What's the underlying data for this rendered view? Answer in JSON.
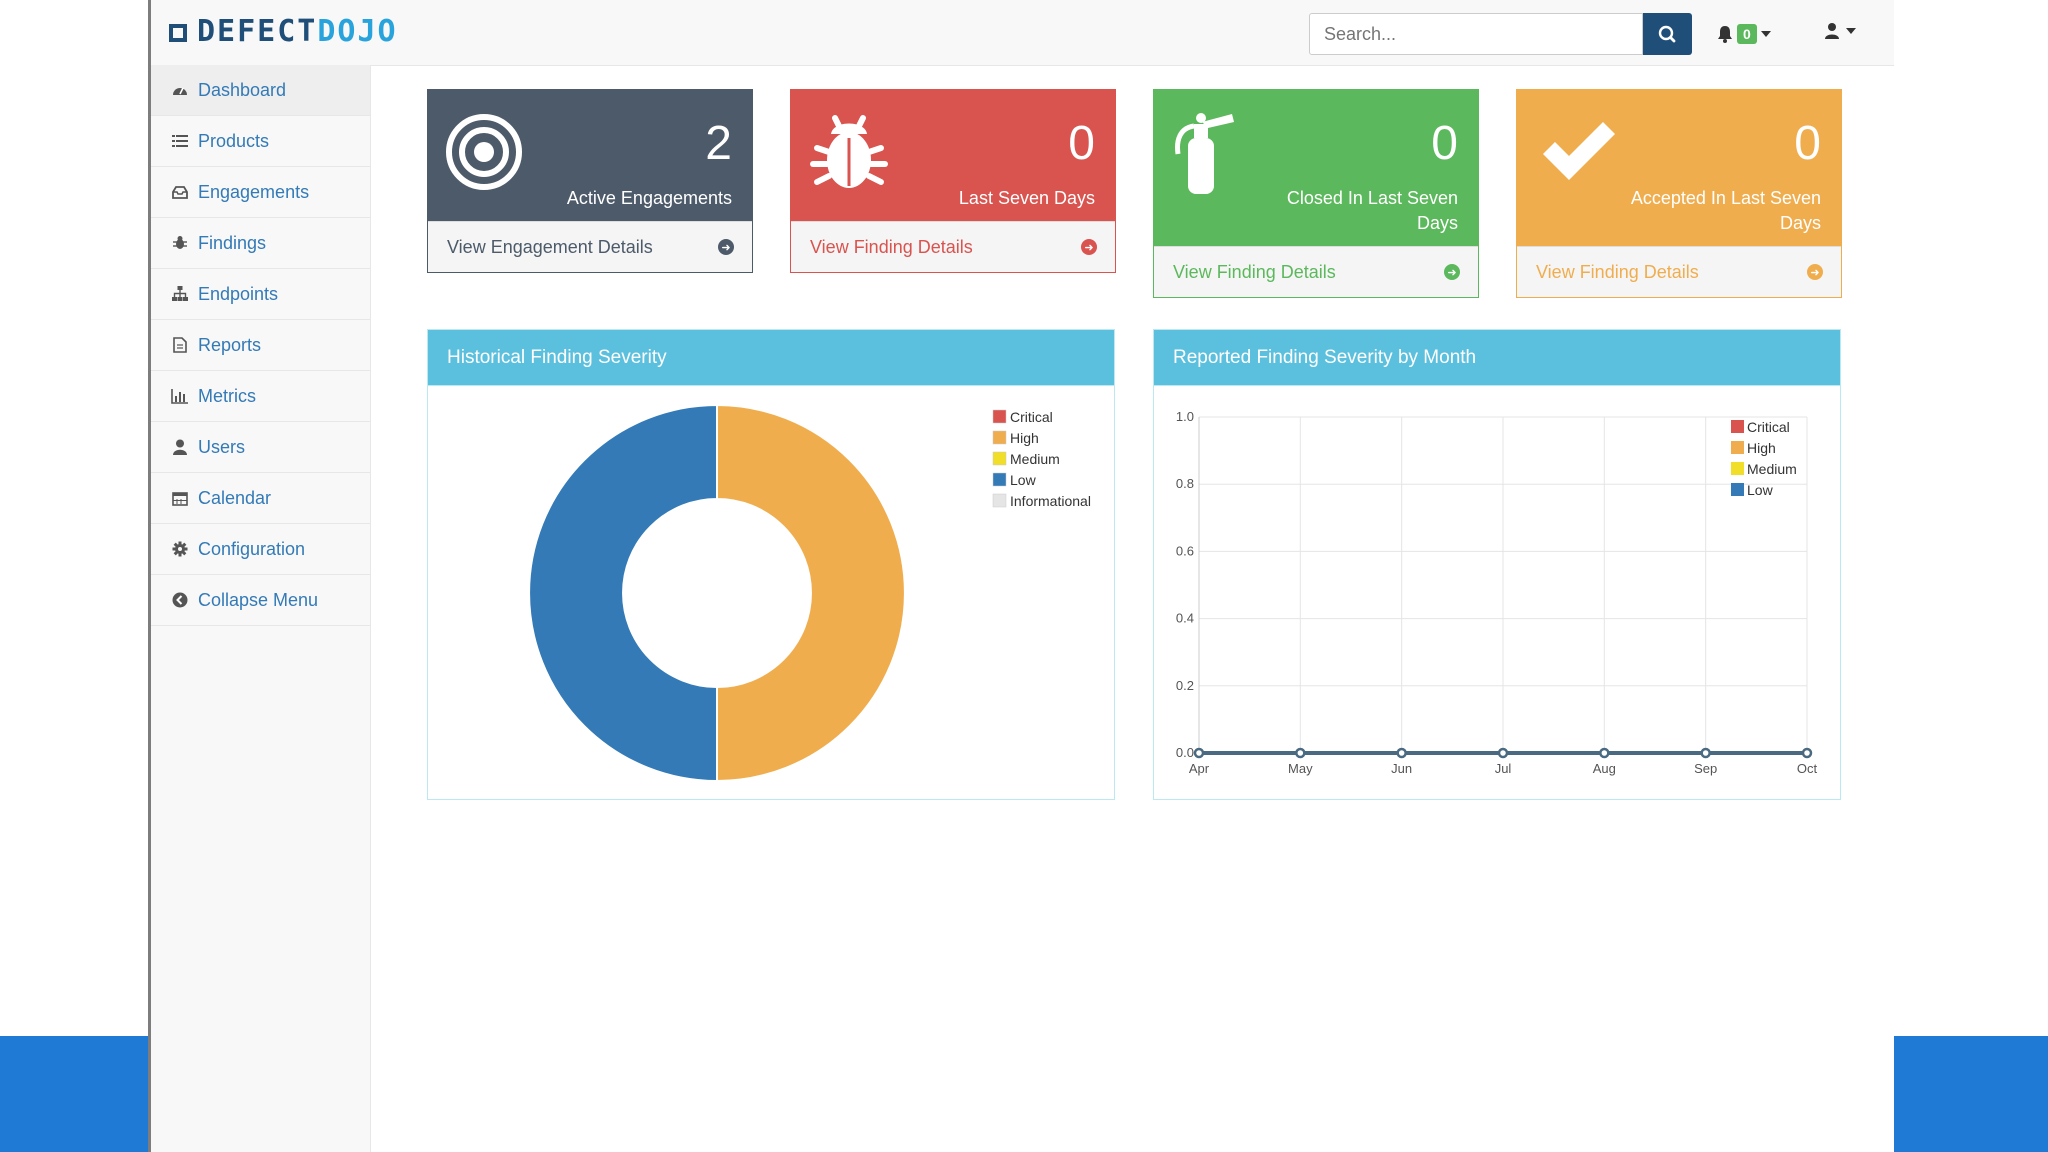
{
  "brand": {
    "part1": "DEFECT",
    "part2": "DOJO"
  },
  "search": {
    "placeholder": "Search..."
  },
  "notifications": {
    "count": "0"
  },
  "sidebar": {
    "items": [
      {
        "label": "Dashboard",
        "icon": "dashboard-icon"
      },
      {
        "label": "Products",
        "icon": "list-icon"
      },
      {
        "label": "Engagements",
        "icon": "inbox-icon"
      },
      {
        "label": "Findings",
        "icon": "bug-icon"
      },
      {
        "label": "Endpoints",
        "icon": "sitemap-icon"
      },
      {
        "label": "Reports",
        "icon": "file-icon"
      },
      {
        "label": "Metrics",
        "icon": "bar-chart-icon"
      },
      {
        "label": "Users",
        "icon": "user-icon"
      },
      {
        "label": "Calendar",
        "icon": "calendar-icon"
      },
      {
        "label": "Configuration",
        "icon": "gear-icon"
      },
      {
        "label": "Collapse Menu",
        "icon": "arrow-circle-left-icon"
      }
    ]
  },
  "cards": [
    {
      "count": "2",
      "label": "Active Engagements",
      "link": "View Engagement Details",
      "color": "#4c5a6a"
    },
    {
      "count": "0",
      "label": "Last Seven Days",
      "link": "View Finding Details",
      "color": "#d9534f"
    },
    {
      "count": "0",
      "label": "Closed In Last Seven Days",
      "link": "View Finding Details",
      "color": "#5cb85c"
    },
    {
      "count": "0",
      "label": "Accepted In Last Seven Days",
      "link": "View Finding Details",
      "color": "#f0ad4e"
    }
  ],
  "panels": {
    "historical": {
      "title": "Historical Finding Severity"
    },
    "monthly": {
      "title": "Reported Finding Severity by Month"
    }
  },
  "chart_data": [
    {
      "type": "pie",
      "donut": true,
      "legend": [
        {
          "name": "Critical",
          "color": "#d9534f"
        },
        {
          "name": "High",
          "color": "#f0ad4e"
        },
        {
          "name": "Medium",
          "color": "#f0de28"
        },
        {
          "name": "Low",
          "color": "#337ab7"
        },
        {
          "name": "Informational",
          "color": "#e5e5e5"
        }
      ],
      "values": [
        {
          "name": "Critical",
          "value": 0
        },
        {
          "name": "High",
          "value": 1
        },
        {
          "name": "Medium",
          "value": 0
        },
        {
          "name": "Low",
          "value": 1
        },
        {
          "name": "Informational",
          "value": 0
        }
      ],
      "legend_position": "top-right"
    },
    {
      "type": "line",
      "categories": [
        "Apr",
        "May",
        "Jun",
        "Jul",
        "Aug",
        "Sep",
        "Oct"
      ],
      "series": [
        {
          "name": "Critical",
          "color": "#d9534f",
          "values": [
            0,
            0,
            0,
            0,
            0,
            0,
            0
          ]
        },
        {
          "name": "High",
          "color": "#f0ad4e",
          "values": [
            0,
            0,
            0,
            0,
            0,
            0,
            0
          ]
        },
        {
          "name": "Medium",
          "color": "#f0de28",
          "values": [
            0,
            0,
            0,
            0,
            0,
            0,
            0
          ]
        },
        {
          "name": "Low",
          "color": "#337ab7",
          "values": [
            0,
            0,
            0,
            0,
            0,
            0,
            0
          ]
        }
      ],
      "ylim": [
        0,
        1.0
      ],
      "yticks": [
        "0.0",
        "0.2",
        "0.4",
        "0.6",
        "0.8",
        "1.0"
      ],
      "grid": true,
      "legend_position": "top-right"
    }
  ]
}
